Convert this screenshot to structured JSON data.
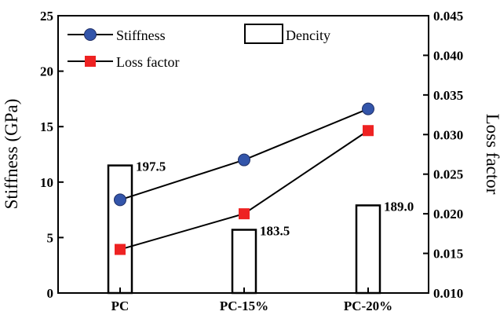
{
  "chart_data": {
    "type": "bar+line",
    "categories": [
      "PC",
      "PC-15%",
      "PC-20%"
    ],
    "density": {
      "name": "Dencity",
      "values": [
        197.5,
        183.5,
        189.0
      ],
      "labels": [
        "197.5",
        "183.5",
        "189.0"
      ],
      "bar_heights_on_left_axis": [
        11.5,
        5.7,
        7.9
      ],
      "color": "#000000"
    },
    "stiffness": {
      "name": "Stiffness",
      "axis": "left",
      "values": [
        8.4,
        12.0,
        16.6
      ],
      "marker": "circle",
      "color": "#3355aa"
    },
    "loss_factor": {
      "name": "Loss factor",
      "axis": "right",
      "values": [
        0.0155,
        0.02,
        0.0305
      ],
      "marker": "square",
      "color": "#ee2222"
    },
    "left_axis": {
      "label": "Stiffness (GPa)",
      "ylim": [
        0,
        25
      ],
      "ticks": [
        "0",
        "5",
        "10",
        "15",
        "20",
        "25"
      ]
    },
    "right_axis": {
      "label": "Loss factor",
      "ylim": [
        0.01,
        0.045
      ],
      "ticks": [
        "0.010",
        "0.015",
        "0.020",
        "0.025",
        "0.030",
        "0.035",
        "0.040",
        "0.045"
      ]
    },
    "legend_position": "top",
    "grid": false
  }
}
